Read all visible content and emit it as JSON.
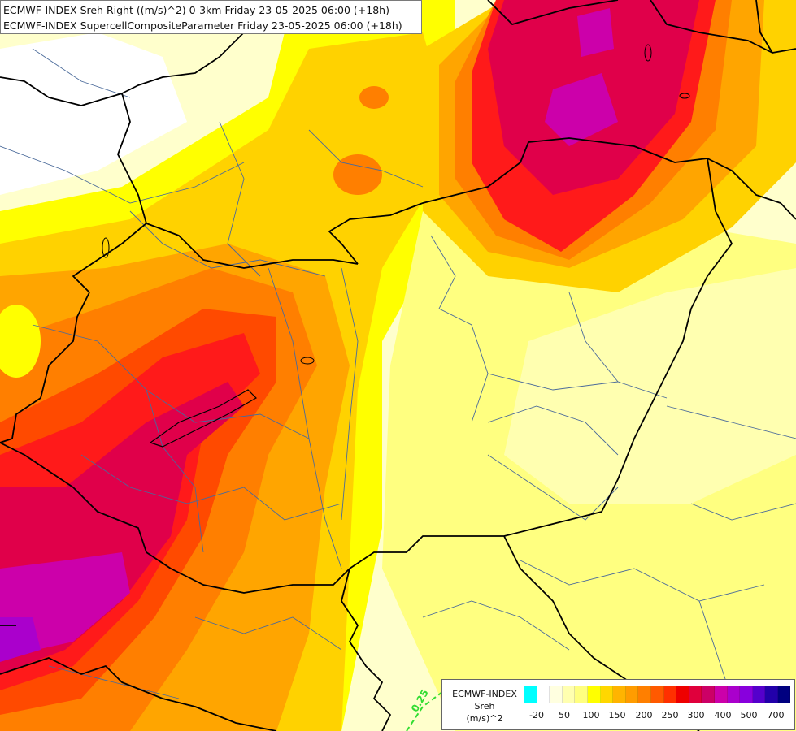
{
  "title": {
    "line1": "ECMWF-INDEX Sreh Right ((m/s)^2) 0-3km Friday 23-05-2025 06:00 (+18h)",
    "line2": "ECMWF-INDEX SupercellCompositeParameter Friday 23-05-2025 06:00 (+18h)"
  },
  "legend": {
    "title_line1": "ECMWF-INDEX",
    "title_line2": "Sreh",
    "title_line3": "(m/s)^2",
    "colors": [
      "#00ffff",
      "#ffffff",
      "#ffffe0",
      "#ffffb0",
      "#ffff80",
      "#ffff00",
      "#ffd700",
      "#ffb400",
      "#ff9c00",
      "#ff7f00",
      "#ff5a00",
      "#ff3000",
      "#ee0000",
      "#e0003c",
      "#cc0066",
      "#cc00aa",
      "#aa00cc",
      "#8800dd",
      "#5500cc",
      "#2200aa",
      "#000080"
    ],
    "ticks": [
      "-20",
      "50",
      "100",
      "150",
      "200",
      "250",
      "300",
      "400",
      "500",
      "700"
    ]
  },
  "contour_label": "0.25",
  "map_colors": {
    "background": "#ffffcc",
    "pale_yellow": "#ffffa0",
    "yellow": "#ffff00",
    "gold": "#ffd200",
    "orange": "#ffa500",
    "dark_orange": "#ff7f00",
    "red_orange": "#ff4a00",
    "red": "#ff1a1a",
    "crimson": "#e0004a",
    "magenta": "#cc00aa",
    "purple": "#aa00cc",
    "border": "#000000",
    "region_line": "#4a6a9a"
  }
}
